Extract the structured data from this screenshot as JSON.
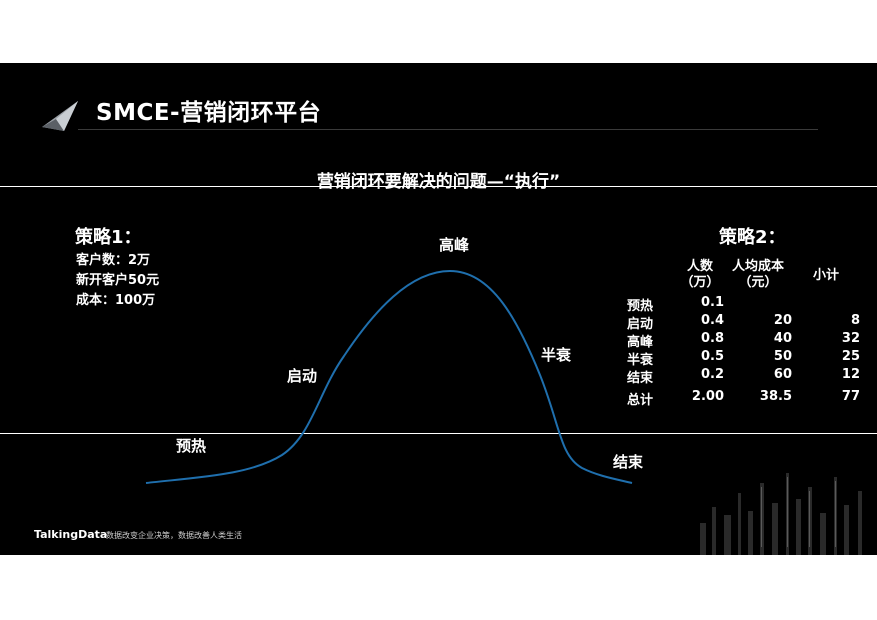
{
  "slide": {
    "title": "SMCE-营销闭环平台",
    "subtitle": "营销闭环要解决的问题—“执行”"
  },
  "strategy1": {
    "heading": "策略1：",
    "lines": [
      "客户数：2万",
      "新开客户50元",
      "成本：100万"
    ]
  },
  "curve": {
    "labels": {
      "preheat": "预热",
      "launch": "启动",
      "peak": "高峰",
      "decline": "半衰",
      "end": "结束"
    },
    "line_color": "#1f6fad"
  },
  "strategy2": {
    "heading": "策略2：",
    "headers": {
      "people": [
        "人数",
        "（万）"
      ],
      "unit_cost": [
        "人均成本",
        "（元）"
      ],
      "subtotal": [
        "小计"
      ]
    },
    "rows": [
      {
        "stage": "预热",
        "people": "0.1",
        "unit_cost": "",
        "subtotal": ""
      },
      {
        "stage": "启动",
        "people": "0.4",
        "unit_cost": "20",
        "subtotal": "8"
      },
      {
        "stage": "高峰",
        "people": "0.8",
        "unit_cost": "40",
        "subtotal": "32"
      },
      {
        "stage": "半衰",
        "people": "0.5",
        "unit_cost": "50",
        "subtotal": "25"
      },
      {
        "stage": "结束",
        "people": "0.2",
        "unit_cost": "60",
        "subtotal": "12"
      },
      {
        "stage": "总计",
        "people": "2.00",
        "unit_cost": "38.5",
        "subtotal": "77"
      }
    ]
  },
  "footer": {
    "brand": "TalkingData",
    "slogan": "数据改变企业决策，数据改善人类生活"
  },
  "colors": {
    "background": "#000000",
    "text": "#ffffff",
    "curve": "#1f6fad"
  }
}
